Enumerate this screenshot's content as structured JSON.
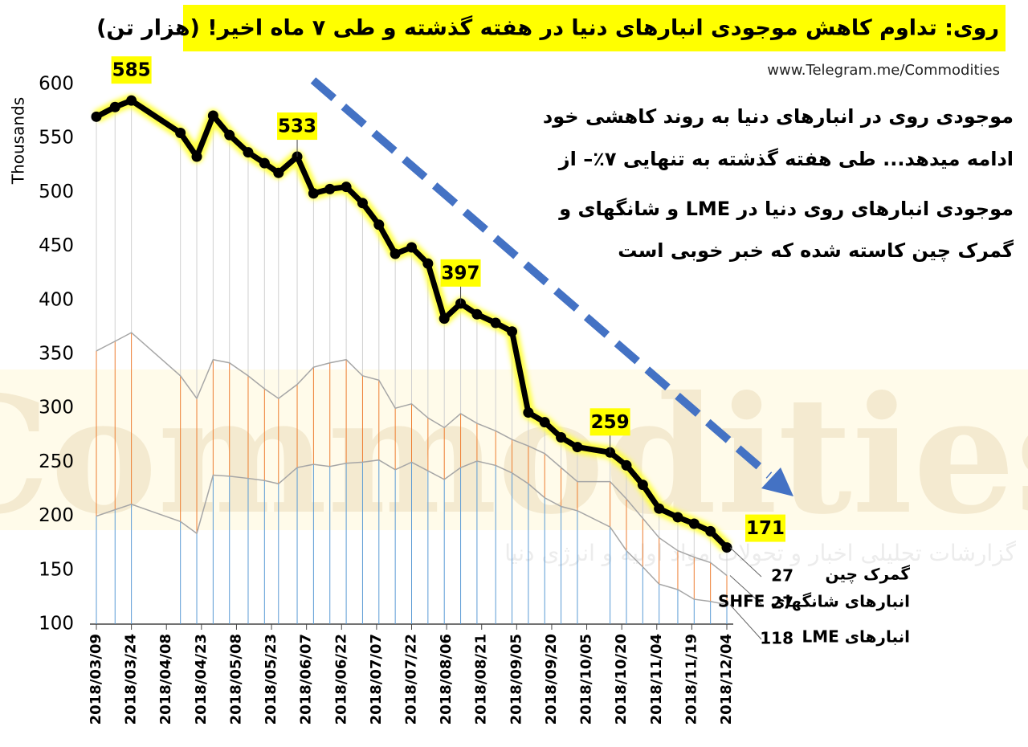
{
  "title": "روی: تداوم کاهش موجودی انبارهای دنیا در هفته گذشته و طی ۷ ماه اخیر! (هزار تن)",
  "source": "www.Telegram.me/Commodities",
  "annotation": [
    "موجودی روی در انبارهای دنیا به روند کاهشی خود",
    "ادامه میدهد... طی هفته گذشته به تنهایی ۷٪– از",
    "موجودی انبارهای روی دنیا در LME و شانگهای و",
    "گمرک چین کاسته شده که خبر خوبی است"
  ],
  "watermark": "Commodities",
  "watermark_subtitle": "گزارشات تحلیلی اخبار و تحولات مواد اولیه و انرژی دنیا",
  "chart_data": {
    "type": "line",
    "y_label": "Thousands",
    "x": [
      0,
      8,
      15,
      36,
      43,
      50,
      57,
      65,
      72,
      78,
      86,
      93,
      100,
      107,
      114,
      121,
      128,
      135,
      142,
      149,
      156,
      163,
      171,
      178,
      185,
      192,
      199,
      206,
      220,
      227,
      234,
      241,
      249,
      256,
      263,
      270
    ],
    "xlim": [
      0,
      270
    ],
    "xticks": [
      {
        "value": 0,
        "label": "2018/03/09"
      },
      {
        "value": 15,
        "label": "2018/03/24"
      },
      {
        "value": 30,
        "label": "2018/04/08"
      },
      {
        "value": 45,
        "label": "2018/04/23"
      },
      {
        "value": 60,
        "label": "2018/05/08"
      },
      {
        "value": 75,
        "label": "2018/05/23"
      },
      {
        "value": 90,
        "label": "2018/06/07"
      },
      {
        "value": 105,
        "label": "2018/06/22"
      },
      {
        "value": 120,
        "label": "2018/07/07"
      },
      {
        "value": 135,
        "label": "2018/07/22"
      },
      {
        "value": 150,
        "label": "2018/08/06"
      },
      {
        "value": 165,
        "label": "2018/08/21"
      },
      {
        "value": 180,
        "label": "2018/09/05"
      },
      {
        "value": 195,
        "label": "2018/09/20"
      },
      {
        "value": 210,
        "label": "2018/10/05"
      },
      {
        "value": 225,
        "label": "2018/10/20"
      },
      {
        "value": 240,
        "label": "2018/11/04"
      },
      {
        "value": 255,
        "label": "2018/11/19"
      },
      {
        "value": 270,
        "label": "2018/12/04"
      }
    ],
    "ylim": [
      100,
      600
    ],
    "yticks": [
      100,
      150,
      200,
      250,
      300,
      350,
      400,
      450,
      500,
      550,
      600
    ],
    "series": [
      {
        "color": "#000000",
        "values": [
          570,
          579,
          585,
          555,
          533,
          571,
          553,
          537,
          527,
          518,
          533,
          499,
          503,
          505,
          490,
          470,
          443,
          449,
          434,
          383,
          397,
          387,
          379,
          371,
          296,
          287,
          273,
          264,
          259,
          247,
          229,
          207,
          199,
          193,
          186,
          171
        ],
        "value_labels": [
          null,
          null,
          "585",
          null,
          null,
          null,
          null,
          null,
          null,
          null,
          "533",
          null,
          null,
          null,
          null,
          null,
          null,
          null,
          null,
          null,
          "397",
          null,
          null,
          null,
          null,
          null,
          null,
          null,
          "259",
          null,
          null,
          null,
          null,
          null,
          null,
          "171"
        ]
      },
      {
        "color": "#a6a6a6",
        "values": [
          353,
          362,
          370,
          330,
          309,
          345,
          342,
          330,
          318,
          309,
          322,
          338,
          342,
          345,
          330,
          326,
          300,
          304,
          291,
          282,
          295,
          286,
          279,
          271,
          265,
          258,
          245,
          232,
          232,
          216,
          198,
          180,
          168,
          162,
          157,
          145
        ]
      },
      {
        "color": "#a6a6a6",
        "values": [
          200,
          206,
          211,
          195,
          184,
          238,
          237,
          235,
          233,
          230,
          245,
          248,
          246,
          249,
          250,
          252,
          243,
          250,
          242,
          234,
          245,
          251,
          247,
          240,
          230,
          217,
          209,
          205,
          190,
          168,
          153,
          137,
          132,
          123,
          121,
          118
        ]
      }
    ],
    "end_labels": [
      {
        "name": "گمرک چین",
        "value": 27
      },
      {
        "name": "انبارهای شانگهای SHFE",
        "value": 27
      },
      {
        "name": "انبارهای LME",
        "value": 118
      }
    ]
  }
}
